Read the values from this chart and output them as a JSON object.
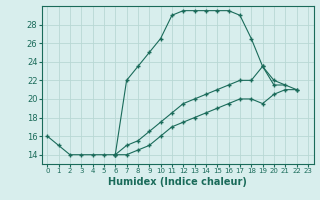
{
  "xlabel": "Humidex (Indice chaleur)",
  "background_color": "#d8eeed",
  "grid_color": "#b8d8d4",
  "line_color": "#1a6b5a",
  "xlim": [
    -0.5,
    23.5
  ],
  "ylim": [
    13.0,
    30.0
  ],
  "xticks": [
    0,
    1,
    2,
    3,
    4,
    5,
    6,
    7,
    8,
    9,
    10,
    11,
    12,
    13,
    14,
    15,
    16,
    17,
    18,
    19,
    20,
    21,
    22,
    23
  ],
  "yticks": [
    14,
    16,
    18,
    20,
    22,
    24,
    26,
    28
  ],
  "series": [
    {
      "x": [
        0,
        1,
        2,
        3,
        4,
        5,
        6,
        7,
        8,
        9,
        10,
        11,
        12,
        13,
        14,
        15,
        16,
        17,
        18,
        19,
        20,
        21
      ],
      "y": [
        16,
        15,
        14,
        14,
        14,
        14,
        14,
        22,
        23.5,
        25,
        26.5,
        29,
        29.5,
        29.5,
        29.5,
        29.5,
        29.5,
        29,
        26.5,
        23.5,
        21.5,
        21.5
      ]
    },
    {
      "x": [
        6,
        7,
        8,
        9,
        10,
        11,
        12,
        13,
        14,
        15,
        16,
        17,
        18,
        19,
        20,
        22
      ],
      "y": [
        14,
        15,
        15.5,
        16.5,
        17.5,
        18.5,
        19.5,
        20,
        20.5,
        21,
        21.5,
        22,
        22,
        23.5,
        22,
        21
      ]
    },
    {
      "x": [
        6,
        7,
        8,
        9,
        10,
        11,
        12,
        13,
        14,
        15,
        16,
        17,
        18,
        19,
        20,
        21,
        22
      ],
      "y": [
        14,
        14,
        14.5,
        15,
        16,
        17,
        17.5,
        18,
        18.5,
        19,
        19.5,
        20,
        20,
        19.5,
        20.5,
        21,
        21
      ]
    }
  ]
}
